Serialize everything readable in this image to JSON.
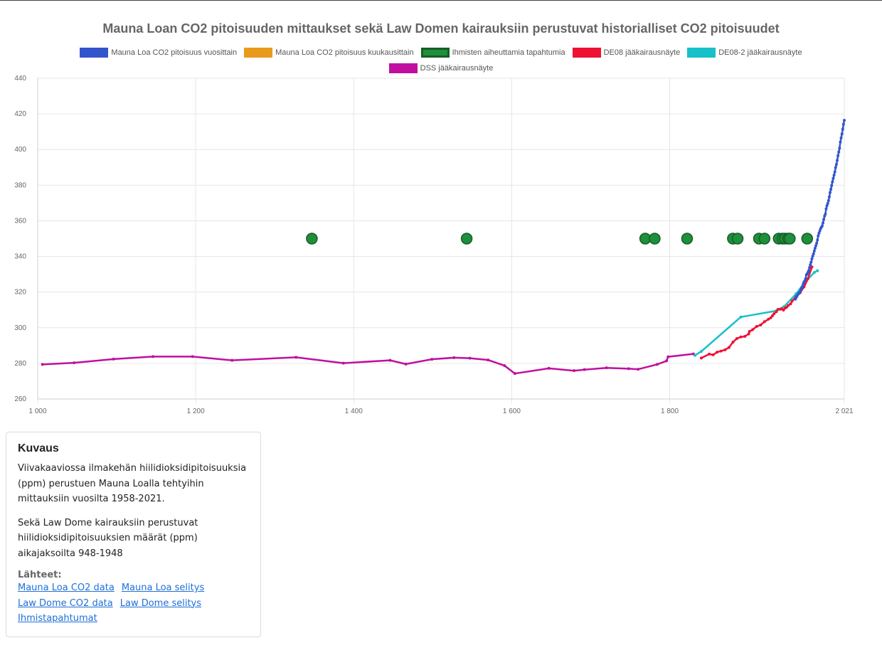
{
  "chart_data": {
    "type": "line",
    "title": "Mauna Loan CO2 pitoisuuden mittaukset sekä Law Domen kairauksiin perustuvat historialliset CO2 pitoisuudet",
    "xlim": [
      1000,
      2021
    ],
    "ylim": [
      260,
      440
    ],
    "x_ticks": [
      1000,
      1200,
      1400,
      1600,
      1800,
      2021
    ],
    "x_tick_labels": [
      "1 000",
      "1 200",
      "1 400",
      "1 600",
      "1 800",
      "2 021"
    ],
    "y_ticks": [
      260,
      280,
      300,
      320,
      340,
      360,
      380,
      400,
      420,
      440
    ],
    "y_tick_labels": [
      "260",
      "280",
      "300",
      "320",
      "340",
      "360",
      "380",
      "400",
      "420",
      "440"
    ],
    "grid": true,
    "legend_position": "top",
    "series": [
      {
        "name": "Mauna Loa CO2 pitoisuus vuosittain",
        "color": "#3355cc",
        "style": "line",
        "points": [
          [
            1959,
            316.0
          ],
          [
            1960,
            316.9
          ],
          [
            1961,
            317.6
          ],
          [
            1962,
            318.5
          ],
          [
            1963,
            319.0
          ],
          [
            1964,
            319.6
          ],
          [
            1965,
            320.0
          ],
          [
            1966,
            321.4
          ],
          [
            1967,
            322.2
          ],
          [
            1968,
            323.0
          ],
          [
            1969,
            324.6
          ],
          [
            1970,
            325.7
          ],
          [
            1971,
            326.3
          ],
          [
            1972,
            327.5
          ],
          [
            1973,
            329.7
          ],
          [
            1974,
            330.2
          ],
          [
            1975,
            331.1
          ],
          [
            1976,
            332.1
          ],
          [
            1977,
            333.8
          ],
          [
            1978,
            335.4
          ],
          [
            1979,
            336.8
          ],
          [
            1980,
            338.7
          ],
          [
            1981,
            340.1
          ],
          [
            1982,
            341.4
          ],
          [
            1983,
            343.0
          ],
          [
            1984,
            344.6
          ],
          [
            1985,
            346.0
          ],
          [
            1986,
            347.4
          ],
          [
            1987,
            349.2
          ],
          [
            1988,
            351.6
          ],
          [
            1989,
            353.1
          ],
          [
            1990,
            354.4
          ],
          [
            1991,
            355.6
          ],
          [
            1992,
            356.4
          ],
          [
            1993,
            357.1
          ],
          [
            1994,
            358.8
          ],
          [
            1995,
            360.8
          ],
          [
            1996,
            362.6
          ],
          [
            1997,
            363.7
          ],
          [
            1998,
            366.7
          ],
          [
            1999,
            368.4
          ],
          [
            2000,
            369.7
          ],
          [
            2001,
            371.3
          ],
          [
            2002,
            373.4
          ],
          [
            2003,
            375.9
          ],
          [
            2004,
            377.7
          ],
          [
            2005,
            379.8
          ],
          [
            2006,
            381.9
          ],
          [
            2007,
            383.8
          ],
          [
            2008,
            385.6
          ],
          [
            2009,
            387.4
          ],
          [
            2010,
            389.9
          ],
          [
            2011,
            391.6
          ],
          [
            2012,
            393.9
          ],
          [
            2013,
            396.5
          ],
          [
            2014,
            398.6
          ],
          [
            2015,
            400.8
          ],
          [
            2016,
            404.2
          ],
          [
            2017,
            406.5
          ],
          [
            2018,
            408.7
          ],
          [
            2019,
            411.4
          ],
          [
            2020,
            414.2
          ],
          [
            2021,
            416.4
          ]
        ]
      },
      {
        "name": "Mauna Loa CO2 pitoisuus kuukausittain",
        "color": "#e99a1c",
        "style": "line",
        "points": []
      },
      {
        "name": "Ihmisten aiheuttamia tapahtumia",
        "color": "#1e8f3a",
        "border_color": "#165e27",
        "style": "points",
        "points": [
          [
            1347,
            350
          ],
          [
            1543,
            350
          ],
          [
            1769,
            350
          ],
          [
            1781,
            350
          ],
          [
            1822,
            350
          ],
          [
            1880,
            350
          ],
          [
            1886,
            350
          ],
          [
            1913,
            350
          ],
          [
            1920,
            350
          ],
          [
            1938,
            350
          ],
          [
            1943,
            350
          ],
          [
            1946,
            350
          ],
          [
            1950,
            350
          ],
          [
            1952,
            350
          ],
          [
            1974,
            350
          ]
        ]
      },
      {
        "name": "DE08 jääkairausnäyte",
        "color": "#ee1133",
        "style": "line",
        "points": [
          [
            1840,
            283.0
          ],
          [
            1850,
            285.2
          ],
          [
            1855,
            284.8
          ],
          [
            1860,
            286.3
          ],
          [
            1865,
            286.9
          ],
          [
            1870,
            287.6
          ],
          [
            1875,
            288.9
          ],
          [
            1880,
            291.9
          ],
          [
            1885,
            293.9
          ],
          [
            1890,
            294.8
          ],
          [
            1895,
            295.1
          ],
          [
            1900,
            296.5
          ],
          [
            1901,
            297.9
          ],
          [
            1905,
            298.9
          ],
          [
            1910,
            300.7
          ],
          [
            1915,
            301.5
          ],
          [
            1920,
            303.4
          ],
          [
            1925,
            304.8
          ],
          [
            1928,
            305.6
          ],
          [
            1930,
            306.7
          ],
          [
            1932,
            307.8
          ],
          [
            1935,
            309.0
          ],
          [
            1937,
            310.3
          ],
          [
            1940,
            310.4
          ],
          [
            1942,
            310.6
          ],
          [
            1944,
            309.9
          ],
          [
            1946,
            311.0
          ],
          [
            1948,
            311.5
          ],
          [
            1950,
            312.5
          ],
          [
            1953,
            313.4
          ],
          [
            1955,
            315.0
          ],
          [
            1960,
            317.5
          ],
          [
            1965,
            319.6
          ],
          [
            1970,
            322.9
          ],
          [
            1975,
            327.5
          ],
          [
            1980,
            334.1
          ]
        ]
      },
      {
        "name": "DE08-2 jääkairausnäyte",
        "color": "#18c0c8",
        "style": "line",
        "points": [
          [
            1832,
            284.5
          ],
          [
            1840,
            286.7
          ],
          [
            1890,
            306.0
          ],
          [
            1935,
            309.5
          ],
          [
            1945,
            312.0
          ],
          [
            1960,
            319.0
          ],
          [
            1970,
            325.0
          ],
          [
            1983,
            331.0
          ],
          [
            1987,
            332.0
          ]
        ]
      },
      {
        "name": "DSS jääkairausnäyte",
        "color": "#c00fa0",
        "style": "line",
        "points": [
          [
            1006,
            279.4
          ],
          [
            1046,
            280.3
          ],
          [
            1096,
            282.4
          ],
          [
            1146,
            283.8
          ],
          [
            1196,
            283.8
          ],
          [
            1246,
            281.7
          ],
          [
            1327,
            283.4
          ],
          [
            1387,
            280.1
          ],
          [
            1446,
            281.7
          ],
          [
            1466,
            279.6
          ],
          [
            1499,
            282.3
          ],
          [
            1527,
            283.2
          ],
          [
            1547,
            282.9
          ],
          [
            1570,
            281.9
          ],
          [
            1591,
            278.7
          ],
          [
            1604,
            274.3
          ],
          [
            1647,
            277.2
          ],
          [
            1679,
            275.9
          ],
          [
            1692,
            276.5
          ],
          [
            1720,
            277.5
          ],
          [
            1748,
            277.0
          ],
          [
            1760,
            276.7
          ],
          [
            1784,
            279.4
          ],
          [
            1796,
            281.4
          ],
          [
            1798,
            283.7
          ],
          [
            1830,
            285.3
          ]
        ]
      }
    ]
  },
  "description": {
    "title": "Kuvaus",
    "paragraph1": "Viivakaaviossa ilmakehän hiilidioksidipitoisuuksia (ppm) perustuen Mauna Loalla tehtyihin mittauksiin vuosilta 1958-2021.",
    "paragraph2": "Sekä Law Dome kairauksiin perustuvat hiilidioksidipitoisuuksien määrät (ppm) aikajaksoilta 948-1948",
    "sources_title": "Lähteet:",
    "links": {
      "mauna_loa_data": "Mauna Loa CO2 data",
      "mauna_loa_info": "Mauna Loa selitys",
      "law_dome_data": "Law Dome CO2 data",
      "law_dome_info": "Law Dome selitys",
      "human_events": "Ihmistapahtumat"
    }
  }
}
